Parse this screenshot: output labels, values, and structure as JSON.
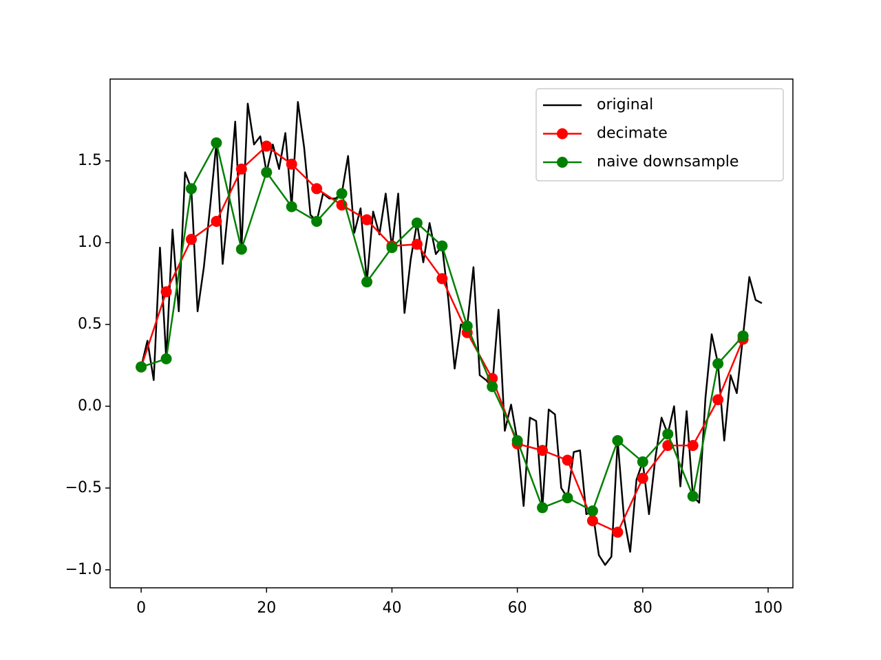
{
  "chart_data": {
    "type": "line",
    "xlim": [
      -4.95,
      103.95
    ],
    "ylim": [
      -1.11,
      2.0
    ],
    "xticks": [
      0,
      20,
      40,
      60,
      80,
      100
    ],
    "yticks": [
      {
        "value": -1.0,
        "label": "−1.0"
      },
      {
        "value": -0.5,
        "label": "−0.5"
      },
      {
        "value": 0.0,
        "label": "0.0"
      },
      {
        "value": 0.5,
        "label": "0.5"
      },
      {
        "value": 1.0,
        "label": "1.0"
      },
      {
        "value": 1.5,
        "label": "1.5"
      }
    ],
    "legend": "upper right",
    "series": [
      {
        "name": "original",
        "color": "#000000",
        "marker": false,
        "x": [
          0,
          1,
          2,
          3,
          4,
          5,
          6,
          7,
          8,
          9,
          10,
          11,
          12,
          13,
          14,
          15,
          16,
          17,
          18,
          19,
          20,
          21,
          22,
          23,
          24,
          25,
          26,
          27,
          28,
          29,
          30,
          31,
          32,
          33,
          34,
          35,
          36,
          37,
          38,
          39,
          40,
          41,
          42,
          43,
          44,
          45,
          46,
          47,
          48,
          49,
          50,
          51,
          52,
          53,
          54,
          55,
          56,
          57,
          58,
          59,
          60,
          61,
          62,
          63,
          64,
          65,
          66,
          67,
          68,
          69,
          70,
          71,
          72,
          73,
          74,
          75,
          76,
          77,
          78,
          79,
          80,
          81,
          82,
          83,
          84,
          85,
          86,
          87,
          88,
          89,
          90,
          91,
          92,
          93,
          94,
          95,
          96,
          97,
          98,
          99
        ],
        "values": [
          0.24,
          0.4,
          0.16,
          0.97,
          0.29,
          1.08,
          0.58,
          1.43,
          1.33,
          0.58,
          0.85,
          1.22,
          1.61,
          0.87,
          1.25,
          1.74,
          0.96,
          1.85,
          1.6,
          1.65,
          1.43,
          1.6,
          1.45,
          1.67,
          1.22,
          1.86,
          1.58,
          1.17,
          1.13,
          1.3,
          1.27,
          1.27,
          1.3,
          1.53,
          1.06,
          1.21,
          0.76,
          1.19,
          1.05,
          1.3,
          0.97,
          1.3,
          0.57,
          0.9,
          1.12,
          0.88,
          1.12,
          0.93,
          0.98,
          0.65,
          0.23,
          0.5,
          0.49,
          0.85,
          0.19,
          0.16,
          0.12,
          0.59,
          -0.15,
          0.01,
          -0.21,
          -0.61,
          -0.07,
          -0.09,
          -0.62,
          -0.02,
          -0.05,
          -0.5,
          -0.56,
          -0.28,
          -0.27,
          -0.66,
          -0.64,
          -0.91,
          -0.97,
          -0.92,
          -0.21,
          -0.68,
          -0.89,
          -0.45,
          -0.34,
          -0.66,
          -0.32,
          -0.07,
          -0.17,
          0.0,
          -0.49,
          -0.03,
          -0.55,
          -0.59,
          0.05,
          0.44,
          0.26,
          -0.21,
          0.19,
          0.08,
          0.43,
          0.79,
          0.65,
          0.63
        ]
      },
      {
        "name": "decimate",
        "color": "#ff0000",
        "marker": true,
        "x": [
          0,
          4,
          8,
          12,
          16,
          20,
          24,
          28,
          32,
          36,
          40,
          44,
          48,
          52,
          56,
          60,
          64,
          68,
          72,
          76,
          80,
          84,
          88,
          92,
          96
        ],
        "values": [
          0.24,
          0.7,
          1.02,
          1.13,
          1.45,
          1.59,
          1.48,
          1.33,
          1.23,
          1.14,
          0.98,
          0.99,
          0.78,
          0.45,
          0.17,
          -0.23,
          -0.27,
          -0.33,
          -0.7,
          -0.77,
          -0.44,
          -0.24,
          -0.24,
          0.04,
          0.41
        ]
      },
      {
        "name": "naive downsample",
        "color": "#008000",
        "marker": true,
        "x": [
          0,
          4,
          8,
          12,
          16,
          20,
          24,
          28,
          32,
          36,
          40,
          44,
          48,
          52,
          56,
          60,
          64,
          68,
          72,
          76,
          80,
          84,
          88,
          92,
          96
        ],
        "values": [
          0.24,
          0.29,
          1.33,
          1.61,
          0.96,
          1.43,
          1.22,
          1.13,
          1.3,
          0.76,
          0.97,
          1.12,
          0.98,
          0.49,
          0.12,
          -0.21,
          -0.62,
          -0.56,
          -0.64,
          -0.21,
          -0.34,
          -0.17,
          -0.55,
          0.26,
          0.43
        ]
      }
    ]
  }
}
